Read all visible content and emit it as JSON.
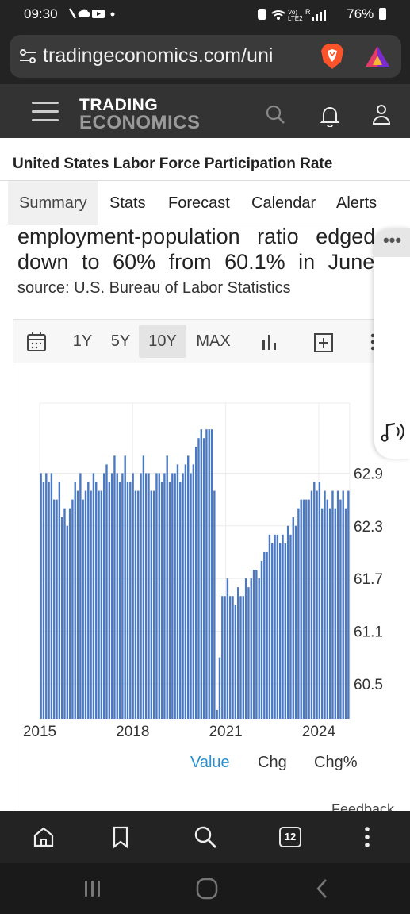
{
  "status_bar": {
    "time": "09:30",
    "battery": "76%",
    "network": "LTE2"
  },
  "browser": {
    "url": "tradingeconomics.com/uni",
    "tabs_count": "12"
  },
  "site_header": {
    "logo_line1": "TRADING",
    "logo_line2": "ECONOMICS"
  },
  "page": {
    "title": "United States Labor Force Participation Rate",
    "tabs": [
      "Summary",
      "Stats",
      "Forecast",
      "Calendar",
      "Alerts"
    ],
    "description_line1": "employment-population ratio edged",
    "description_line2": "down to 60% from 60.1% in June",
    "source": "source: U.S. Bureau of Labor Statistics",
    "feedback": "Feedback"
  },
  "chart_toolbar": {
    "ranges": [
      "1Y",
      "5Y",
      "10Y",
      "MAX"
    ],
    "active_range": "10Y"
  },
  "value_tabs": [
    "Value",
    "Chg",
    "Chg%"
  ],
  "colors": {
    "bar": "#4a78c2",
    "accent": "#2a8fd0",
    "dark_bg": "#232323"
  },
  "chart_data": {
    "type": "bar",
    "title": "",
    "xlabel": "",
    "ylabel": "",
    "x_ticks": [
      "2015",
      "2018",
      "2021",
      "2024"
    ],
    "y_ticks": [
      62.9,
      62.3,
      61.7,
      61.1,
      60.5
    ],
    "ylim": [
      60.1,
      63.7
    ],
    "grid": true,
    "series": [
      {
        "values": [
          62.9,
          62.8,
          62.9,
          62.8,
          62.9,
          62.6,
          62.6,
          62.8,
          62.4,
          62.5,
          62.3,
          62.5,
          62.6,
          62.8,
          62.7,
          62.9,
          62.6,
          62.7,
          62.8,
          62.7,
          62.9,
          62.8,
          62.7,
          62.7,
          62.9,
          63.0,
          62.8,
          62.9,
          63.1,
          62.9,
          62.8,
          62.9,
          63.1,
          62.8,
          62.8,
          62.9,
          62.7,
          62.7,
          62.9,
          63.1,
          62.9,
          62.9,
          62.7,
          62.7,
          62.9,
          62.9,
          62.8,
          62.9,
          63.1,
          62.8,
          62.9,
          62.9,
          63.0,
          62.8,
          62.9,
          63.0,
          63.1,
          62.9,
          63.0,
          63.2,
          63.3,
          63.4,
          63.3,
          63.4,
          63.4,
          63.4,
          62.7,
          60.2,
          60.8,
          61.5,
          61.5,
          61.7,
          61.5,
          61.5,
          61.4,
          61.6,
          61.5,
          61.5,
          61.7,
          61.6,
          61.7,
          61.8,
          61.8,
          61.7,
          61.9,
          62.0,
          62.0,
          62.2,
          62.1,
          62.2,
          62.2,
          62.1,
          62.2,
          62.1,
          62.3,
          62.2,
          62.4,
          62.3,
          62.5,
          62.6,
          62.6,
          62.6,
          62.6,
          62.7,
          62.8,
          62.7,
          62.8,
          62.5,
          62.7,
          62.6,
          62.5,
          62.7,
          62.5,
          62.7,
          62.6,
          62.7,
          62.5,
          62.7
        ]
      }
    ]
  }
}
